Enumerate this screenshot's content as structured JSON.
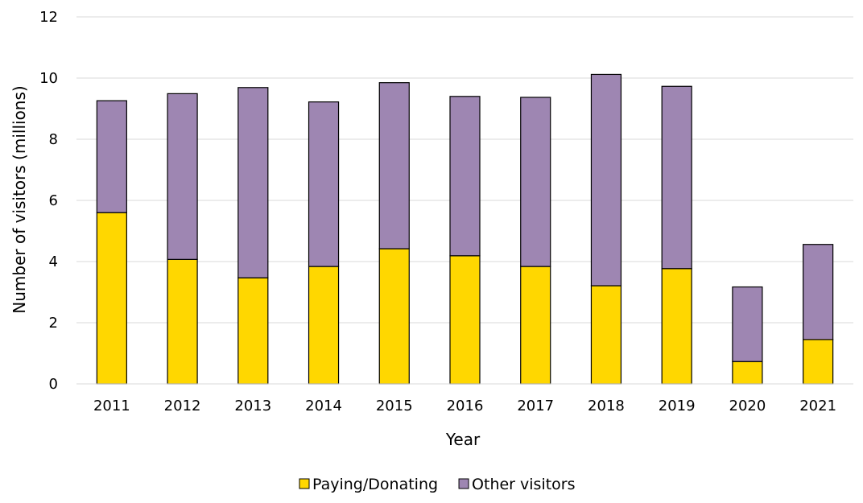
{
  "chart_data": {
    "type": "bar",
    "stacked": true,
    "title": "",
    "xlabel": "Year",
    "ylabel": "Number of visitors (millions)",
    "ylim": [
      0,
      12
    ],
    "yticks": [
      "0",
      "2",
      "4",
      "6",
      "8",
      "10",
      "12"
    ],
    "grid": true,
    "legend_position": "bottom",
    "categories": [
      "2011",
      "2012",
      "2013",
      "2014",
      "2015",
      "2016",
      "2017",
      "2018",
      "2019",
      "2020",
      "2021"
    ],
    "series": [
      {
        "name": "Paying/Donating",
        "color": "#FFD700",
        "values": [
          5.6,
          4.07,
          3.47,
          3.84,
          4.42,
          4.19,
          3.84,
          3.21,
          3.77,
          0.73,
          1.45
        ]
      },
      {
        "name": "Other visitors",
        "color": "#9E86B2",
        "values": [
          3.66,
          5.42,
          6.22,
          5.38,
          5.43,
          5.21,
          5.53,
          6.91,
          5.96,
          2.44,
          3.11
        ]
      }
    ]
  }
}
